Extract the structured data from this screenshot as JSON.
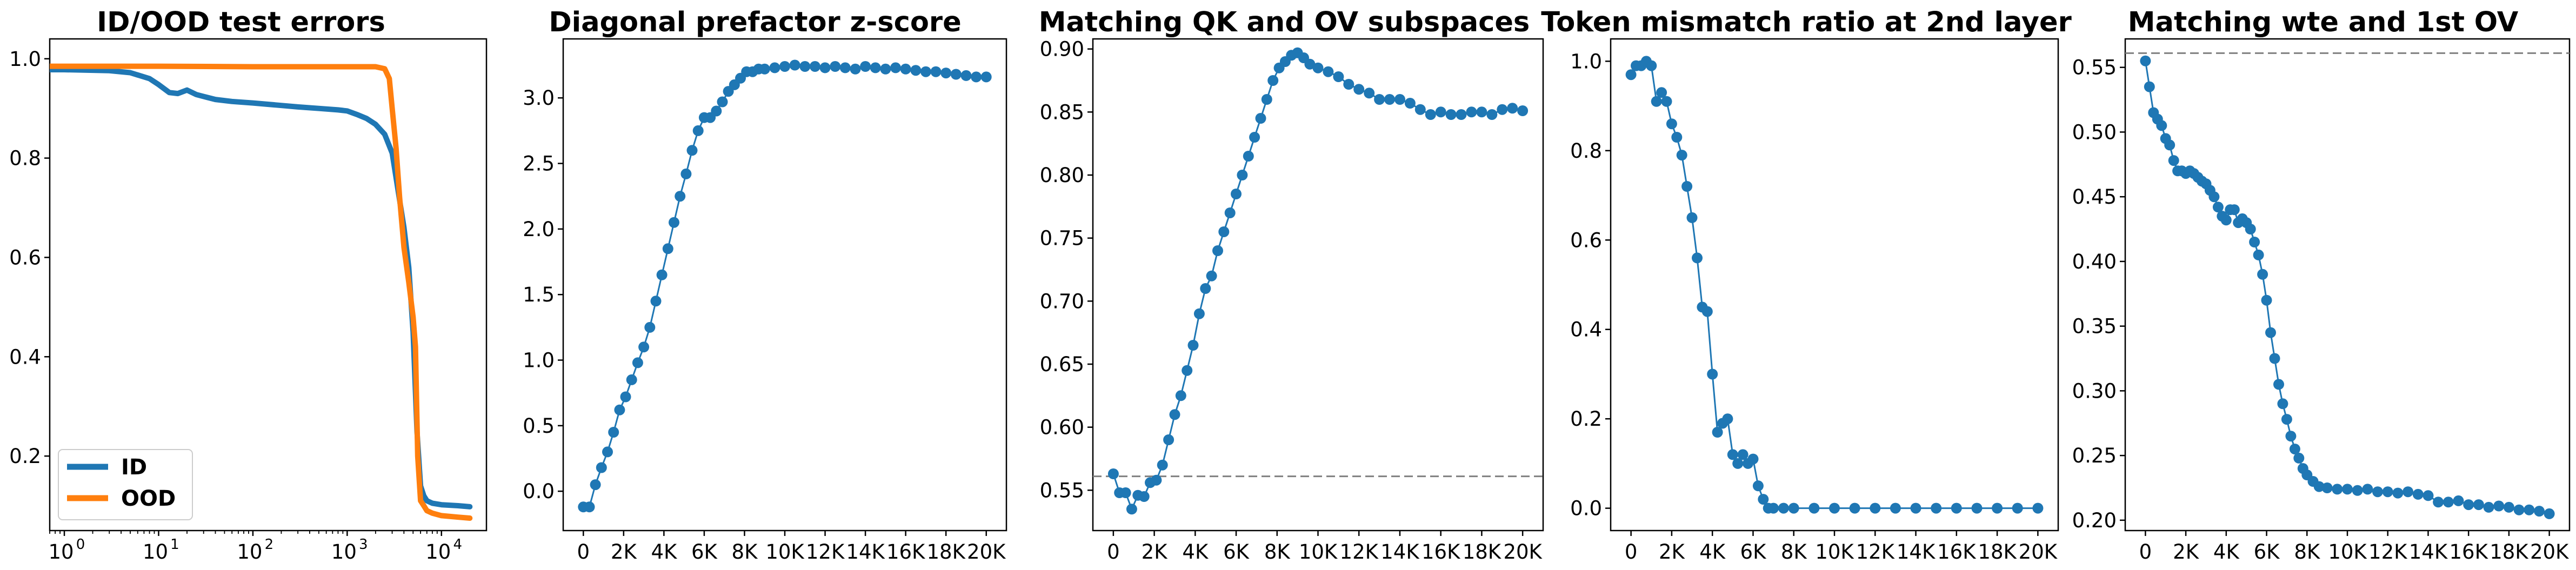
{
  "chart_data": [
    {
      "type": "line",
      "title": "ID/OOD test errors",
      "xscale": "log",
      "xlim": [
        0.7,
        30000
      ],
      "ylim": [
        0.05,
        1.04
      ],
      "xticks": [
        1,
        10,
        100,
        1000,
        10000
      ],
      "xtick_labels": [
        {
          "base": "10",
          "exp": "0"
        },
        {
          "base": "10",
          "exp": "1"
        },
        {
          "base": "10",
          "exp": "2"
        },
        {
          "base": "10",
          "exp": "3"
        },
        {
          "base": "10",
          "exp": "4"
        }
      ],
      "yticks": [
        0.2,
        0.4,
        0.6,
        0.8,
        1.0
      ],
      "ytick_labels": [
        "0.2",
        "0.4",
        "0.6",
        "0.8",
        "1.0"
      ],
      "legend": {
        "position": "lower-left",
        "entries": [
          "ID",
          "OOD"
        ]
      },
      "series": [
        {
          "name": "ID",
          "color": "#1f77b4",
          "x": [
            0.7,
            1,
            3,
            5,
            8,
            10,
            13,
            16,
            20,
            25,
            30,
            40,
            60,
            100,
            200,
            300,
            500,
            800,
            1000,
            1300,
            1600,
            2000,
            2500,
            3000,
            3500,
            4000,
            4500,
            5000,
            5500,
            6000,
            6500,
            7000,
            8000,
            10000,
            15000,
            20000
          ],
          "y": [
            0.978,
            0.978,
            0.976,
            0.972,
            0.96,
            0.948,
            0.932,
            0.93,
            0.937,
            0.928,
            0.924,
            0.918,
            0.914,
            0.911,
            0.906,
            0.903,
            0.9,
            0.897,
            0.895,
            0.887,
            0.88,
            0.868,
            0.848,
            0.81,
            0.73,
            0.66,
            0.58,
            0.45,
            0.25,
            0.14,
            0.12,
            0.11,
            0.105,
            0.102,
            0.1,
            0.098
          ]
        },
        {
          "name": "OOD",
          "color": "#ff7f0e",
          "x": [
            0.7,
            1,
            10,
            100,
            1000,
            1500,
            2000,
            2500,
            2800,
            3000,
            3300,
            3600,
            4000,
            4500,
            5000,
            5300,
            5600,
            6000,
            6500,
            7000,
            8000,
            10000,
            15000,
            20000
          ],
          "y": [
            0.985,
            0.985,
            0.985,
            0.984,
            0.984,
            0.984,
            0.984,
            0.98,
            0.96,
            0.9,
            0.82,
            0.72,
            0.62,
            0.55,
            0.48,
            0.42,
            0.2,
            0.11,
            0.1,
            0.09,
            0.085,
            0.08,
            0.077,
            0.075
          ]
        }
      ]
    },
    {
      "type": "line",
      "title": "Diagonal prefactor z-score",
      "xlim": [
        -1000,
        21000
      ],
      "ylim": [
        -0.3,
        3.45
      ],
      "xticks": [
        0,
        2000,
        4000,
        6000,
        8000,
        10000,
        12000,
        14000,
        16000,
        18000,
        20000
      ],
      "xtick_labels": [
        "0",
        "2K",
        "4K",
        "6K",
        "8K",
        "10K",
        "12K",
        "14K",
        "16K",
        "18K",
        "20K"
      ],
      "yticks": [
        0.0,
        0.5,
        1.0,
        1.5,
        2.0,
        2.5,
        3.0
      ],
      "ytick_labels": [
        "0.0",
        "0.5",
        "1.0",
        "1.5",
        "2.0",
        "2.5",
        "3.0"
      ],
      "marker": "circle",
      "series": [
        {
          "color": "#1f77b4",
          "x": [
            0,
            300,
            600,
            900,
            1200,
            1500,
            1800,
            2100,
            2400,
            2700,
            3000,
            3300,
            3600,
            3900,
            4200,
            4500,
            4800,
            5100,
            5400,
            5700,
            6000,
            6300,
            6600,
            6900,
            7200,
            7500,
            7800,
            8100,
            8400,
            8700,
            9000,
            9500,
            10000,
            10500,
            11000,
            11500,
            12000,
            12500,
            13000,
            13500,
            14000,
            14500,
            15000,
            15500,
            16000,
            16500,
            17000,
            17500,
            18000,
            18500,
            19000,
            19500,
            20000
          ],
          "y": [
            -0.12,
            -0.12,
            0.05,
            0.18,
            0.3,
            0.45,
            0.62,
            0.72,
            0.85,
            0.98,
            1.1,
            1.25,
            1.45,
            1.65,
            1.85,
            2.05,
            2.25,
            2.42,
            2.6,
            2.75,
            2.85,
            2.85,
            2.9,
            2.97,
            3.05,
            3.1,
            3.15,
            3.2,
            3.2,
            3.22,
            3.22,
            3.23,
            3.24,
            3.25,
            3.24,
            3.24,
            3.23,
            3.24,
            3.23,
            3.22,
            3.24,
            3.23,
            3.22,
            3.23,
            3.22,
            3.21,
            3.2,
            3.2,
            3.19,
            3.18,
            3.17,
            3.16,
            3.16
          ]
        }
      ]
    },
    {
      "type": "line",
      "title": "Matching QK and OV subspaces",
      "xlim": [
        -1000,
        21000
      ],
      "ylim": [
        0.518,
        0.908
      ],
      "xticks": [
        0,
        2000,
        4000,
        6000,
        8000,
        10000,
        12000,
        14000,
        16000,
        18000,
        20000
      ],
      "xtick_labels": [
        "0",
        "2K",
        "4K",
        "6K",
        "8K",
        "10K",
        "12K",
        "14K",
        "16K",
        "18K",
        "20K"
      ],
      "yticks": [
        0.55,
        0.6,
        0.65,
        0.7,
        0.75,
        0.8,
        0.85,
        0.9
      ],
      "ytick_labels": [
        "0.55",
        "0.60",
        "0.65",
        "0.70",
        "0.75",
        "0.80",
        "0.85",
        "0.90"
      ],
      "hline": 0.561,
      "marker": "circle",
      "series": [
        {
          "color": "#1f77b4",
          "x": [
            0,
            300,
            600,
            900,
            1200,
            1500,
            1800,
            2100,
            2400,
            2700,
            3000,
            3300,
            3600,
            3900,
            4200,
            4500,
            4800,
            5100,
            5400,
            5700,
            6000,
            6300,
            6600,
            6900,
            7200,
            7500,
            7800,
            8100,
            8400,
            8700,
            9000,
            9300,
            9600,
            10000,
            10500,
            11000,
            11500,
            12000,
            12500,
            13000,
            13500,
            14000,
            14500,
            15000,
            15500,
            16000,
            16500,
            17000,
            17500,
            18000,
            18500,
            19000,
            19500,
            20000
          ],
          "y": [
            0.563,
            0.548,
            0.548,
            0.535,
            0.546,
            0.545,
            0.556,
            0.558,
            0.57,
            0.59,
            0.61,
            0.625,
            0.645,
            0.665,
            0.69,
            0.71,
            0.72,
            0.74,
            0.755,
            0.77,
            0.785,
            0.8,
            0.815,
            0.83,
            0.845,
            0.86,
            0.875,
            0.885,
            0.89,
            0.895,
            0.897,
            0.893,
            0.888,
            0.885,
            0.882,
            0.878,
            0.872,
            0.868,
            0.865,
            0.86,
            0.86,
            0.86,
            0.857,
            0.852,
            0.848,
            0.85,
            0.848,
            0.848,
            0.85,
            0.85,
            0.848,
            0.852,
            0.853,
            0.851
          ]
        }
      ]
    },
    {
      "type": "line",
      "title": "Token mismatch ratio at 2nd layer",
      "xlim": [
        -1000,
        21000
      ],
      "ylim": [
        -0.05,
        1.05
      ],
      "xticks": [
        0,
        2000,
        4000,
        6000,
        8000,
        10000,
        12000,
        14000,
        16000,
        18000,
        20000
      ],
      "xtick_labels": [
        "0",
        "2K",
        "4K",
        "6K",
        "8K",
        "10K",
        "12K",
        "14K",
        "16K",
        "18K",
        "20K"
      ],
      "yticks": [
        0.0,
        0.2,
        0.4,
        0.6,
        0.8,
        1.0
      ],
      "ytick_labels": [
        "0.0",
        "0.2",
        "0.4",
        "0.6",
        "0.8",
        "1.0"
      ],
      "marker": "circle",
      "series": [
        {
          "color": "#1f77b4",
          "x": [
            0,
            250,
            500,
            750,
            1000,
            1250,
            1500,
            1750,
            2000,
            2250,
            2500,
            2750,
            3000,
            3250,
            3500,
            3750,
            4000,
            4250,
            4500,
            4750,
            5000,
            5250,
            5500,
            5750,
            6000,
            6250,
            6500,
            6750,
            7000,
            7500,
            8000,
            9000,
            10000,
            11000,
            12000,
            13000,
            14000,
            15000,
            16000,
            17000,
            18000,
            19000,
            20000
          ],
          "y": [
            0.97,
            0.99,
            0.99,
            1.0,
            0.99,
            0.91,
            0.93,
            0.91,
            0.86,
            0.83,
            0.79,
            0.72,
            0.65,
            0.56,
            0.45,
            0.44,
            0.3,
            0.17,
            0.19,
            0.2,
            0.12,
            0.1,
            0.12,
            0.1,
            0.11,
            0.05,
            0.02,
            0.0,
            0.0,
            0.0,
            0.0,
            0.0,
            0.0,
            0.0,
            0.0,
            0.0,
            0.0,
            0.0,
            0.0,
            0.0,
            0.0,
            0.0,
            0.0
          ]
        }
      ]
    },
    {
      "type": "line",
      "title": "Matching wte and 1st OV",
      "xlim": [
        -1000,
        21000
      ],
      "ylim": [
        0.192,
        0.572
      ],
      "xticks": [
        0,
        2000,
        4000,
        6000,
        8000,
        10000,
        12000,
        14000,
        16000,
        18000,
        20000
      ],
      "xtick_labels": [
        "0",
        "2K",
        "4K",
        "6K",
        "8K",
        "10K",
        "12K",
        "14K",
        "16K",
        "18K",
        "20K"
      ],
      "yticks": [
        0.2,
        0.25,
        0.3,
        0.35,
        0.4,
        0.45,
        0.5,
        0.55
      ],
      "ytick_labels": [
        "0.20",
        "0.25",
        "0.30",
        "0.35",
        "0.40",
        "0.45",
        "0.50",
        "0.55"
      ],
      "hline": 0.561,
      "marker": "circle",
      "series": [
        {
          "color": "#1f77b4",
          "x": [
            0,
            200,
            400,
            600,
            800,
            1000,
            1200,
            1400,
            1600,
            1800,
            2000,
            2200,
            2400,
            2600,
            2800,
            3000,
            3200,
            3400,
            3600,
            3800,
            4000,
            4200,
            4400,
            4600,
            4800,
            5000,
            5200,
            5400,
            5600,
            5800,
            6000,
            6200,
            6400,
            6600,
            6800,
            7000,
            7200,
            7400,
            7600,
            7800,
            8000,
            8300,
            8600,
            9000,
            9500,
            10000,
            10500,
            11000,
            11500,
            12000,
            12500,
            13000,
            13500,
            14000,
            14500,
            15000,
            15500,
            16000,
            16500,
            17000,
            17500,
            18000,
            18500,
            19000,
            19500,
            20000
          ],
          "y": [
            0.555,
            0.535,
            0.515,
            0.51,
            0.505,
            0.495,
            0.49,
            0.478,
            0.47,
            0.47,
            0.468,
            0.47,
            0.468,
            0.465,
            0.462,
            0.46,
            0.455,
            0.45,
            0.442,
            0.435,
            0.432,
            0.44,
            0.44,
            0.43,
            0.433,
            0.43,
            0.425,
            0.415,
            0.405,
            0.39,
            0.37,
            0.345,
            0.325,
            0.305,
            0.29,
            0.278,
            0.265,
            0.255,
            0.248,
            0.24,
            0.235,
            0.23,
            0.226,
            0.225,
            0.224,
            0.224,
            0.223,
            0.224,
            0.222,
            0.222,
            0.221,
            0.222,
            0.22,
            0.219,
            0.214,
            0.214,
            0.215,
            0.212,
            0.212,
            0.21,
            0.211,
            0.21,
            0.208,
            0.208,
            0.207,
            0.205
          ]
        }
      ]
    }
  ]
}
